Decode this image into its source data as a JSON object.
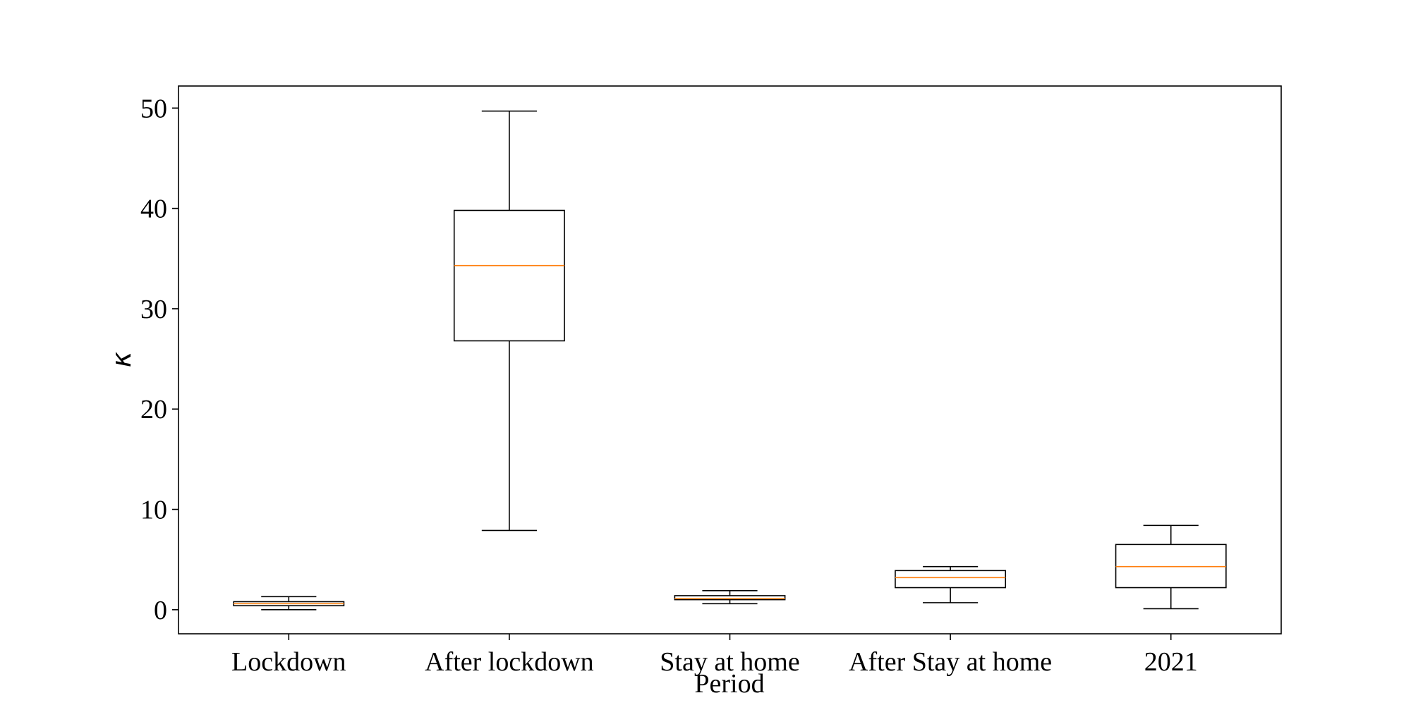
{
  "chart_data": {
    "type": "box",
    "title": "",
    "xlabel": "Period",
    "ylabel": "κ",
    "ylim": [
      -2.4,
      52.2
    ],
    "yticks": [
      0,
      10,
      20,
      30,
      40,
      50
    ],
    "grid": false,
    "legend": "none",
    "colors": {
      "box": "#000000",
      "median": "#ff7f0e"
    },
    "categories": [
      "Lockdown",
      "After lockdown",
      "Stay at home",
      "After Stay at home",
      "2021"
    ],
    "boxes": [
      {
        "category": "Lockdown",
        "whisker_low": 0.0,
        "q1": 0.4,
        "median": 0.6,
        "q3": 0.8,
        "whisker_high": 1.3
      },
      {
        "category": "After lockdown",
        "whisker_low": 7.9,
        "q1": 26.8,
        "median": 34.3,
        "q3": 39.8,
        "whisker_high": 49.7
      },
      {
        "category": "Stay at home",
        "whisker_low": 0.6,
        "q1": 1.0,
        "median": 1.1,
        "q3": 1.4,
        "whisker_high": 1.9
      },
      {
        "category": "After Stay at home",
        "whisker_low": 0.7,
        "q1": 2.2,
        "median": 3.2,
        "q3": 3.9,
        "whisker_high": 4.3
      },
      {
        "category": "2021",
        "whisker_low": 0.1,
        "q1": 2.2,
        "median": 4.3,
        "q3": 6.5,
        "whisker_high": 8.4
      }
    ]
  }
}
